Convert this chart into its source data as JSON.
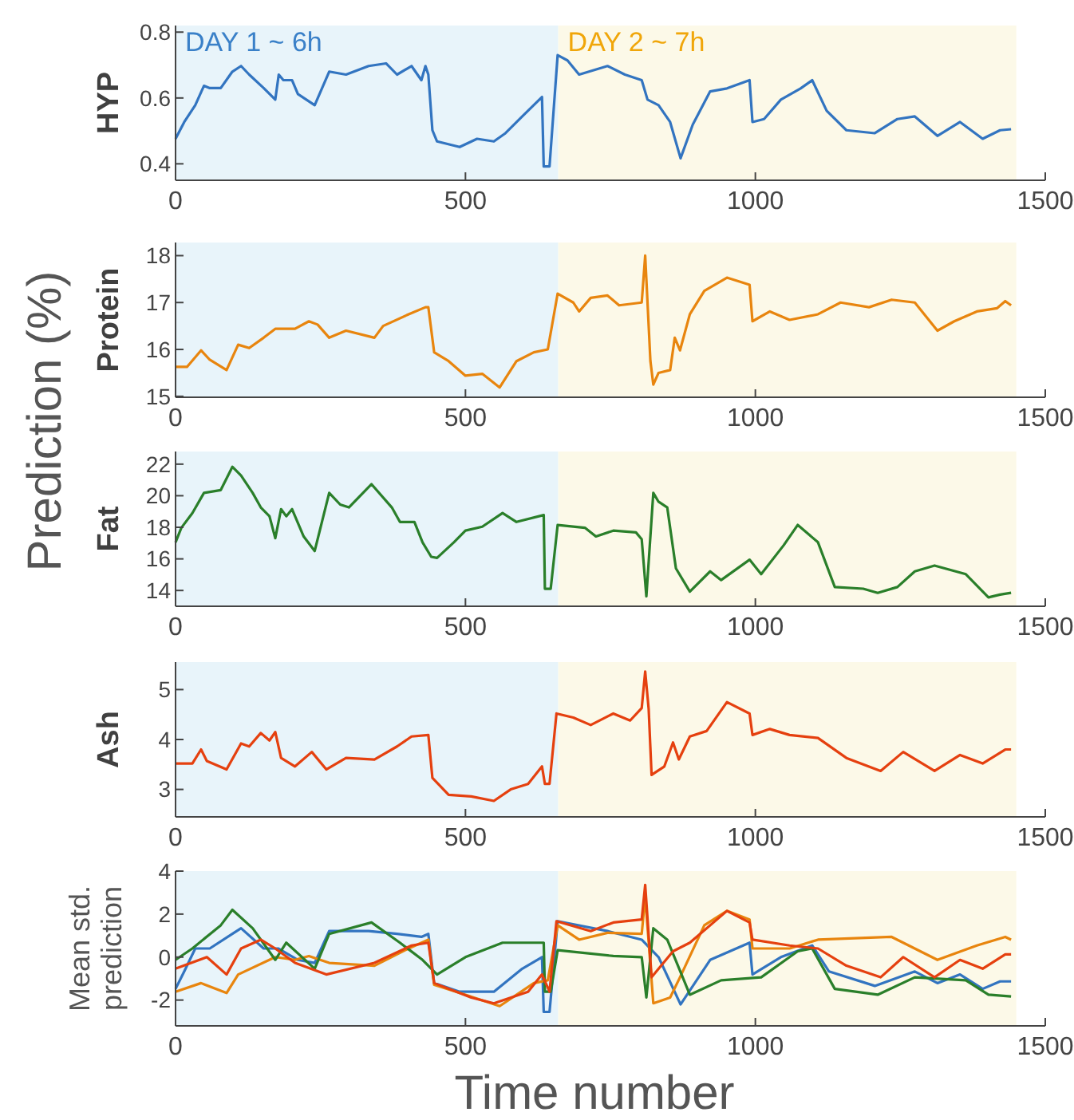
{
  "chart_data": [
    {
      "type": "line",
      "ylabel": "HYP",
      "annotations": [
        "Prediction (%)"
      ],
      "xlim": [
        0,
        1500
      ],
      "xticks": [
        0,
        500,
        1000,
        1500
      ],
      "ylim": [
        0.35,
        0.82
      ],
      "yticks": [
        0.4,
        0.6,
        0.8
      ],
      "bands": [
        {
          "axis": "x",
          "from": 0,
          "to": 660,
          "label": "DAY 1 ~ 6h",
          "color": "#e8f4fa"
        },
        {
          "axis": "x",
          "from": 660,
          "to": 1450,
          "label": "DAY 2 ~ 7h",
          "color": "#fcf9e8"
        }
      ],
      "series": [
        {
          "color": "#3274c0",
          "x": [
            0,
            15,
            34,
            49,
            59,
            78,
            98,
            113,
            127,
            152,
            172,
            178,
            186,
            201,
            211,
            240,
            265,
            294,
            333,
            363,
            382,
            407,
            424,
            431,
            436,
            443,
            451,
            490,
            520,
            549,
            569,
            598,
            632,
            635,
            645,
            659,
            676,
            696,
            745,
            775,
            804,
            814,
            833,
            853,
            871,
            892,
            922,
            951,
            990,
            995,
            1015,
            1044,
            1078,
            1098,
            1123,
            1157,
            1206,
            1245,
            1275,
            1314,
            1353,
            1392,
            1422,
            1441
          ],
          "values": [
            0.476,
            0.527,
            0.578,
            0.637,
            0.63,
            0.63,
            0.68,
            0.697,
            0.671,
            0.63,
            0.595,
            0.671,
            0.654,
            0.654,
            0.612,
            0.578,
            0.68,
            0.671,
            0.697,
            0.705,
            0.671,
            0.697,
            0.654,
            0.697,
            0.671,
            0.502,
            0.468,
            0.451,
            0.476,
            0.468,
            0.493,
            0.544,
            0.603,
            0.392,
            0.392,
            0.73,
            0.714,
            0.671,
            0.697,
            0.671,
            0.654,
            0.595,
            0.578,
            0.527,
            0.417,
            0.519,
            0.62,
            0.629,
            0.654,
            0.527,
            0.536,
            0.595,
            0.629,
            0.654,
            0.561,
            0.502,
            0.493,
            0.536,
            0.544,
            0.485,
            0.527,
            0.476,
            0.502,
            0.505
          ]
        }
      ]
    },
    {
      "type": "line",
      "ylabel": "Protein",
      "xlim": [
        0,
        1500
      ],
      "xticks": [
        0,
        500,
        1000,
        1500
      ],
      "ylim": [
        14.98,
        18.28
      ],
      "yticks": [
        15,
        16,
        17,
        18
      ],
      "bands": [
        {
          "axis": "x",
          "from": 0,
          "to": 660,
          "color": "#e8f4fa"
        },
        {
          "axis": "x",
          "from": 660,
          "to": 1450,
          "color": "#fcf9e8"
        }
      ],
      "series": [
        {
          "color": "#e8850e",
          "x": [
            0,
            20,
            44,
            59,
            88,
            108,
            127,
            152,
            172,
            206,
            230,
            245,
            265,
            294,
            343,
            358,
            402,
            431,
            436,
            446,
            471,
            500,
            529,
            559,
            588,
            618,
            642,
            659,
            686,
            696,
            716,
            745,
            765,
            804,
            810,
            819,
            824,
            833,
            853,
            861,
            870,
            887,
            912,
            951,
            990,
            995,
            1025,
            1059,
            1108,
            1147,
            1196,
            1235,
            1275,
            1314,
            1343,
            1382,
            1417,
            1431,
            1441
          ],
          "values": [
            15.63,
            15.63,
            15.98,
            15.78,
            15.56,
            16.1,
            16.03,
            16.25,
            16.44,
            16.44,
            16.6,
            16.53,
            16.25,
            16.4,
            16.25,
            16.5,
            16.75,
            16.9,
            16.9,
            15.94,
            15.75,
            15.44,
            15.48,
            15.19,
            15.75,
            15.94,
            16.0,
            17.19,
            17.0,
            16.81,
            17.1,
            17.15,
            16.94,
            17.0,
            18.0,
            15.75,
            15.25,
            15.5,
            15.56,
            16.25,
            15.98,
            16.75,
            17.25,
            17.53,
            17.38,
            16.6,
            16.81,
            16.63,
            16.75,
            17.0,
            16.9,
            17.06,
            17.0,
            16.4,
            16.6,
            16.81,
            16.88,
            17.03,
            16.94
          ]
        }
      ]
    },
    {
      "type": "line",
      "ylabel": "Fat",
      "xlim": [
        0,
        1500
      ],
      "xticks": [
        0,
        500,
        1000,
        1500
      ],
      "ylim": [
        13,
        22.8
      ],
      "yticks": [
        14,
        16,
        18,
        20,
        22
      ],
      "bands": [
        {
          "axis": "x",
          "from": 0,
          "to": 660,
          "color": "#e8f4fa"
        },
        {
          "axis": "x",
          "from": 660,
          "to": 1450,
          "color": "#fcf9e8"
        }
      ],
      "series": [
        {
          "color": "#2a7f2a",
          "x": [
            0,
            10,
            29,
            49,
            78,
            98,
            113,
            133,
            147,
            162,
            172,
            182,
            191,
            201,
            221,
            240,
            265,
            284,
            299,
            338,
            373,
            387,
            412,
            426,
            441,
            451,
            480,
            500,
            529,
            564,
            588,
            635,
            637,
            647,
            659,
            706,
            725,
            755,
            794,
            804,
            812,
            824,
            833,
            848,
            863,
            887,
            922,
            941,
            990,
            1010,
            1049,
            1073,
            1108,
            1137,
            1186,
            1211,
            1245,
            1275,
            1309,
            1363,
            1402,
            1422,
            1441
          ],
          "values": [
            17.05,
            17.97,
            18.9,
            20.18,
            20.36,
            21.83,
            21.28,
            20.18,
            19.26,
            18.7,
            17.31,
            19.15,
            18.7,
            19.15,
            17.42,
            16.5,
            20.18,
            19.44,
            19.26,
            20.73,
            19.26,
            18.34,
            18.34,
            17.05,
            16.13,
            16.06,
            17.05,
            17.79,
            18.04,
            18.9,
            18.34,
            18.78,
            14.11,
            14.11,
            18.15,
            17.97,
            17.42,
            17.79,
            17.68,
            17.24,
            13.63,
            20.18,
            19.62,
            19.26,
            15.4,
            13.93,
            15.21,
            14.66,
            15.95,
            15.03,
            16.87,
            18.15,
            17.05,
            14.22,
            14.11,
            13.85,
            14.22,
            15.21,
            15.58,
            15.03,
            13.56,
            13.74,
            13.85
          ]
        }
      ]
    },
    {
      "type": "line",
      "ylabel": "Ash",
      "xlim": [
        0,
        1500
      ],
      "xticks": [
        0,
        500,
        1000,
        1500
      ],
      "ylim": [
        2.45,
        5.55
      ],
      "yticks": [
        3,
        4,
        5
      ],
      "bands": [
        {
          "axis": "x",
          "from": 0,
          "to": 660,
          "color": "#e8f4fa"
        },
        {
          "axis": "x",
          "from": 660,
          "to": 1450,
          "color": "#fcf9e8"
        }
      ],
      "series": [
        {
          "color": "#e5400f",
          "x": [
            0,
            29,
            44,
            54,
            88,
            113,
            127,
            147,
            162,
            172,
            182,
            206,
            235,
            260,
            294,
            343,
            382,
            407,
            436,
            443,
            471,
            510,
            549,
            578,
            608,
            632,
            637,
            645,
            657,
            686,
            716,
            755,
            784,
            804,
            810,
            816,
            821,
            843,
            858,
            868,
            887,
            916,
            951,
            990,
            995,
            1025,
            1059,
            1108,
            1157,
            1216,
            1255,
            1309,
            1353,
            1392,
            1431,
            1441
          ],
          "values": [
            3.52,
            3.52,
            3.8,
            3.57,
            3.4,
            3.92,
            3.86,
            4.13,
            3.98,
            4.15,
            3.63,
            3.46,
            3.75,
            3.4,
            3.63,
            3.6,
            3.86,
            4.06,
            4.09,
            3.23,
            2.89,
            2.86,
            2.77,
            3.0,
            3.11,
            3.46,
            3.11,
            3.11,
            4.52,
            4.44,
            4.29,
            4.52,
            4.38,
            4.63,
            5.36,
            4.61,
            3.29,
            3.46,
            3.94,
            3.6,
            4.06,
            4.17,
            4.75,
            4.52,
            4.09,
            4.21,
            4.09,
            4.03,
            3.63,
            3.37,
            3.75,
            3.37,
            3.69,
            3.52,
            3.8,
            3.8
          ]
        }
      ]
    },
    {
      "type": "line",
      "ylabel": "Mean std. prediction",
      "xlabel": "Time number",
      "xlim": [
        0,
        1500
      ],
      "xticks": [
        0,
        500,
        1000,
        1500
      ],
      "ylim": [
        -3.2,
        4
      ],
      "yticks": [
        -2,
        0,
        2,
        4
      ],
      "bands": [
        {
          "axis": "x",
          "from": 0,
          "to": 660,
          "color": "#e8f4fa"
        },
        {
          "axis": "x",
          "from": 660,
          "to": 1450,
          "color": "#fcf9e8"
        }
      ],
      "series": [
        {
          "color": "#3274c0",
          "x": [
            0,
            15,
            34,
            59,
            98,
            113,
            152,
            177,
            211,
            240,
            265,
            333,
            382,
            424,
            436,
            446,
            490,
            549,
            598,
            632,
            635,
            645,
            659,
            745,
            804,
            833,
            871,
            922,
            990,
            995,
            1044,
            1098,
            1127,
            1206,
            1275,
            1314,
            1353,
            1392,
            1422,
            1441
          ],
          "values": [
            -1.48,
            -0.67,
            0.4,
            0.4,
            1.08,
            1.34,
            0.4,
            0.4,
            -0.13,
            -0.27,
            1.21,
            1.21,
            1.08,
            0.94,
            1.08,
            -1.21,
            -1.61,
            -1.61,
            -0.54,
            0,
            -2.55,
            -2.55,
            1.67,
            1.21,
            0.81,
            0,
            -2.2,
            -0.13,
            0.67,
            -0.81,
            0,
            0.54,
            -0.67,
            -1.34,
            -0.67,
            -1.21,
            -0.81,
            -1.48,
            -1.13,
            -1.13
          ]
        },
        {
          "color": "#e8850e",
          "x": [
            0,
            44,
            88,
            108,
            172,
            206,
            230,
            265,
            343,
            402,
            436,
            446,
            500,
            559,
            618,
            642,
            659,
            696,
            745,
            804,
            810,
            824,
            853,
            870,
            912,
            951,
            990,
            995,
            1059,
            1108,
            1235,
            1314,
            1382,
            1431,
            1441
          ],
          "values": [
            -1.61,
            -1.21,
            -1.67,
            -0.81,
            0,
            -0.13,
            0.05,
            -0.27,
            -0.4,
            0.4,
            0.81,
            -1.29,
            -1.75,
            -2.28,
            -1.21,
            -1.08,
            1.48,
            0.81,
            1.13,
            1.08,
            2.82,
            -2.15,
            -1.88,
            -0.94,
            1.48,
            2.15,
            1.75,
            0.4,
            0.4,
            0.81,
            0.94,
            -0.13,
            0.54,
            0.94,
            0.81
          ]
        },
        {
          "color": "#2a7f2a",
          "x": [
            0,
            29,
            78,
            98,
            133,
            172,
            191,
            240,
            265,
            338,
            387,
            426,
            451,
            500,
            564,
            635,
            637,
            647,
            659,
            755,
            804,
            812,
            824,
            848,
            887,
            941,
            1010,
            1073,
            1098,
            1137,
            1211,
            1275,
            1363,
            1402,
            1441
          ],
          "values": [
            -0.13,
            0.4,
            1.48,
            2.2,
            1.34,
            -0.13,
            0.67,
            -0.54,
            1.08,
            1.61,
            0.67,
            -0.13,
            -0.81,
            0,
            0.67,
            0.67,
            -1.61,
            -1.61,
            0.32,
            0.05,
            0,
            -1.88,
            1.34,
            0.81,
            -1.75,
            -1.08,
            -0.94,
            0.27,
            0.4,
            -1.48,
            -1.75,
            -0.94,
            -1.08,
            -1.75,
            -1.83
          ]
        },
        {
          "color": "#e5400f",
          "x": [
            0,
            54,
            88,
            113,
            147,
            172,
            206,
            260,
            343,
            407,
            436,
            446,
            510,
            549,
            608,
            632,
            645,
            657,
            716,
            755,
            804,
            810,
            821,
            858,
            887,
            951,
            990,
            995,
            1059,
            1108,
            1157,
            1216,
            1255,
            1309,
            1353,
            1392,
            1431,
            1441
          ],
          "values": [
            -0.54,
            0,
            -0.81,
            0.4,
            0.81,
            0.4,
            -0.27,
            -0.81,
            -0.27,
            0.54,
            0.67,
            -1.21,
            -1.88,
            -2.15,
            -1.61,
            -0.81,
            -1.61,
            1.67,
            1.21,
            1.61,
            1.75,
            3.36,
            -0.94,
            0.27,
            0.67,
            2.15,
            1.61,
            0.81,
            0.54,
            0.4,
            -0.4,
            -0.94,
            0,
            -0.94,
            -0.13,
            -0.54,
            0.13,
            0.13
          ]
        }
      ]
    }
  ]
}
